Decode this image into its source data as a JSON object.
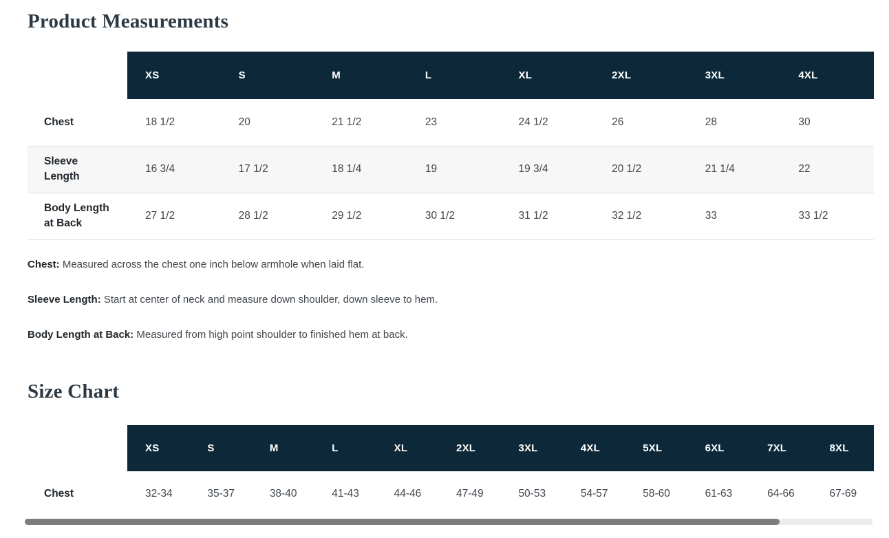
{
  "colors": {
    "header_navy": "#0d2839",
    "stripe_gray": "#f7f7f7",
    "border_gray": "#e4e4e4",
    "scrollbar_track": "#ececec",
    "scrollbar_thumb": "#7d7d7d",
    "title_color": "#2d3a45"
  },
  "product_measurements": {
    "title": "Product Measurements",
    "columns": [
      "XS",
      "S",
      "M",
      "L",
      "XL",
      "2XL",
      "3XL",
      "4XL"
    ],
    "rows": [
      {
        "label": "Chest",
        "values": [
          "18 1/2",
          "20",
          "21 1/2",
          "23",
          "24 1/2",
          "26",
          "28",
          "30"
        ]
      },
      {
        "label": "Sleeve Length",
        "values": [
          "16 3/4",
          "17 1/2",
          "18 1/4",
          "19",
          "19 3/4",
          "20 1/2",
          "21 1/4",
          "22"
        ]
      },
      {
        "label": "Body Length at Back",
        "values": [
          "27 1/2",
          "28 1/2",
          "29 1/2",
          "30 1/2",
          "31 1/2",
          "32 1/2",
          "33",
          "33 1/2"
        ]
      }
    ],
    "notes": [
      {
        "term": "Chest:",
        "definition": " Measured across the chest one inch below armhole when laid flat."
      },
      {
        "term": "Sleeve Length:",
        "definition": " Start at center of neck and measure down shoulder, down sleeve to hem."
      },
      {
        "term": "Body Length at Back:",
        "definition": " Measured from high point shoulder to finished hem at back."
      }
    ]
  },
  "size_chart": {
    "title": "Size Chart",
    "columns": [
      "XS",
      "S",
      "M",
      "L",
      "XL",
      "2XL",
      "3XL",
      "4XL",
      "5XL",
      "6XL",
      "7XL",
      "8XL"
    ],
    "rows": [
      {
        "label": "Chest",
        "values": [
          "32-34",
          "35-37",
          "38-40",
          "41-43",
          "44-46",
          "47-49",
          "50-53",
          "54-57",
          "58-60",
          "61-63",
          "64-66",
          "67-69"
        ]
      }
    ]
  }
}
